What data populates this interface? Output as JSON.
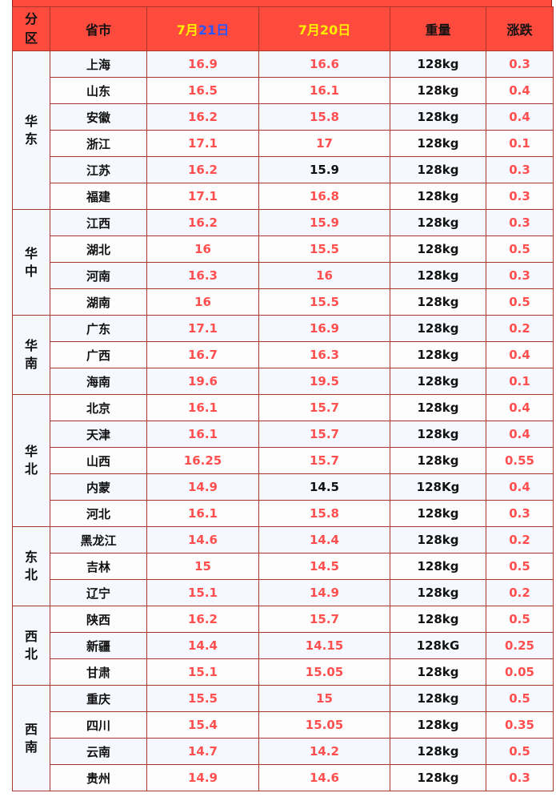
{
  "header": {
    "region": "分区",
    "province": "省市",
    "date1_prefix": "7月",
    "date1_day": "21日",
    "date2": "7月20日",
    "weight": "重量",
    "change": "涨跌"
  },
  "colors": {
    "header_bg": "#ff4b3e",
    "price_red": "#ff4f4f",
    "date_yellow": "#ffee00",
    "date_blue": "#2a55ff"
  },
  "groups": [
    {
      "region": "华东",
      "rows": [
        {
          "province": "上海",
          "d21": "16.9",
          "d20": "16.6",
          "weight": "128kg",
          "change": "0.3"
        },
        {
          "province": "山东",
          "d21": "16.5",
          "d20": "16.1",
          "weight": "128kg",
          "change": "0.4"
        },
        {
          "province": "安徽",
          "d21": "16.2",
          "d20": "15.8",
          "weight": "128kg",
          "change": "0.4"
        },
        {
          "province": "浙江",
          "d21": "17.1",
          "d20": "17",
          "weight": "128kg",
          "change": "0.1"
        },
        {
          "province": "江苏",
          "d21": "16.2",
          "d20": "15.9",
          "d20_black": true,
          "weight": "128kg",
          "change": "0.3"
        },
        {
          "province": "福建",
          "d21": "17.1",
          "d20": "16.8",
          "weight": "128kg",
          "change": "0.3"
        }
      ]
    },
    {
      "region": "华中",
      "rows": [
        {
          "province": "江西",
          "d21": "16.2",
          "d20": "15.9",
          "weight": "128kg",
          "change": "0.3"
        },
        {
          "province": "湖北",
          "d21": "16",
          "d20": "15.5",
          "weight": "128kg",
          "change": "0.5"
        },
        {
          "province": "河南",
          "d21": "16.3",
          "d20": "16",
          "weight": "128kg",
          "change": "0.3"
        },
        {
          "province": "湖南",
          "d21": "16",
          "d20": "15.5",
          "weight": "128kg",
          "change": "0.5"
        }
      ]
    },
    {
      "region": "华南",
      "rows": [
        {
          "province": "广东",
          "d21": "17.1",
          "d20": "16.9",
          "weight": "128kg",
          "change": "0.2"
        },
        {
          "province": "广西",
          "d21": "16.7",
          "d20": "16.3",
          "weight": "128kg",
          "change": "0.4"
        },
        {
          "province": "海南",
          "d21": "19.6",
          "d20": "19.5",
          "weight": "128kg",
          "change": "0.1"
        }
      ]
    },
    {
      "region": "华北",
      "rows": [
        {
          "province": "北京",
          "d21": "16.1",
          "d20": "15.7",
          "weight": "128kg",
          "change": "0.4"
        },
        {
          "province": "天津",
          "d21": "16.1",
          "d20": "15.7",
          "weight": "128kg",
          "change": "0.4"
        },
        {
          "province": "山西",
          "d21": "16.25",
          "d20": "15.7",
          "weight": "128kg",
          "change": "0.55"
        },
        {
          "province": "内蒙",
          "d21": "14.9",
          "d20": "14.5",
          "d20_black": true,
          "weight": "128Kg",
          "change": "0.4"
        },
        {
          "province": "河北",
          "d21": "16.1",
          "d20": "15.8",
          "weight": "128kg",
          "change": "0.3"
        }
      ]
    },
    {
      "region": "东北",
      "rows": [
        {
          "province": "黑龙江",
          "d21": "14.6",
          "d20": "14.4",
          "weight": "128kg",
          "change": "0.2"
        },
        {
          "province": "吉林",
          "d21": "15",
          "d20": "14.5",
          "weight": "128kg",
          "change": "0.5"
        },
        {
          "province": "辽宁",
          "d21": "15.1",
          "d20": "14.9",
          "weight": "128kg",
          "change": "0.2"
        }
      ]
    },
    {
      "region": "西北",
      "rows": [
        {
          "province": "陕西",
          "d21": "16.2",
          "d20": "15.7",
          "weight": "128kg",
          "change": "0.5"
        },
        {
          "province": "新疆",
          "d21": "14.4",
          "d20": "14.15",
          "weight": "128kG",
          "change": "0.25"
        },
        {
          "province": "甘肃",
          "d21": "15.1",
          "d20": "15.05",
          "weight": "128kg",
          "change": "0.05"
        }
      ]
    },
    {
      "region": "西南",
      "rows": [
        {
          "province": "重庆",
          "d21": "15.5",
          "d20": "15",
          "weight": "128kg",
          "change": "0.5"
        },
        {
          "province": "四川",
          "d21": "15.4",
          "d20": "15.05",
          "weight": "128kg",
          "change": "0.35"
        },
        {
          "province": "云南",
          "d21": "14.7",
          "d20": "14.2",
          "weight": "128kg",
          "change": "0.5"
        },
        {
          "province": "贵州",
          "d21": "14.9",
          "d20": "14.6",
          "weight": "128kg",
          "change": "0.3"
        }
      ]
    }
  ]
}
